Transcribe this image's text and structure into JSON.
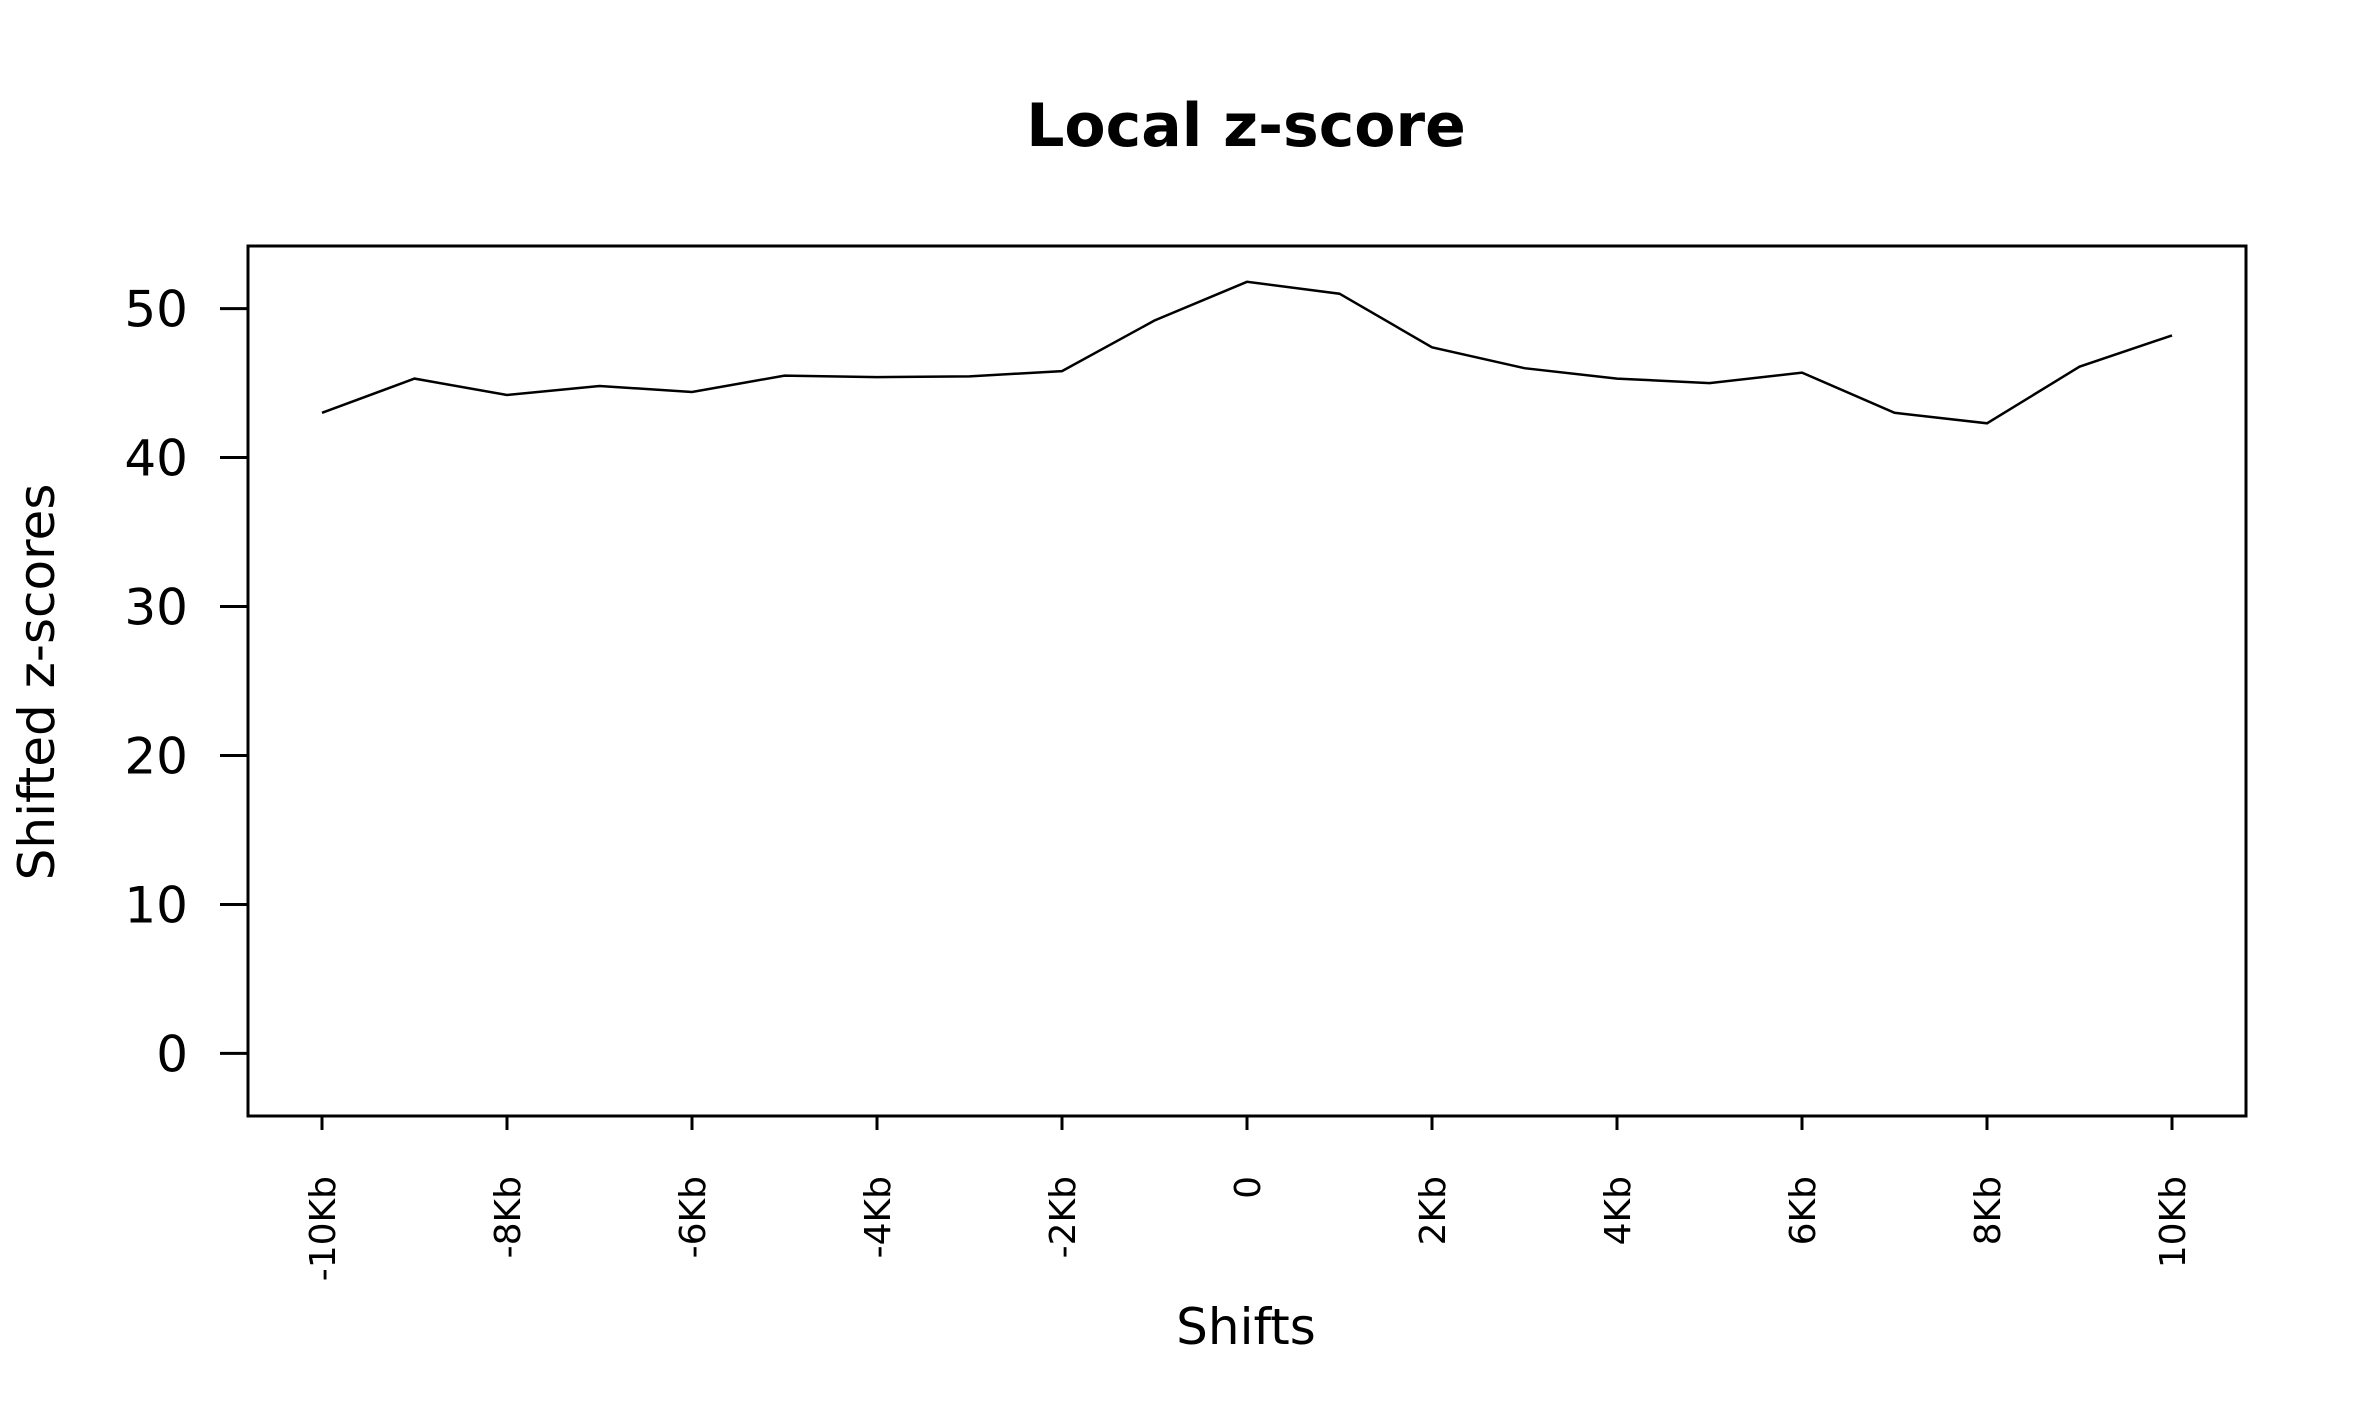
{
  "chart_data": {
    "type": "line",
    "title": "Local z-score",
    "xlabel": "Shifts",
    "ylabel": "Shifted z-scores",
    "xlim": [
      -10.8,
      10.8
    ],
    "ylim": [
      -4.2,
      54.2
    ],
    "yticks": [
      0,
      10,
      20,
      30,
      40,
      50
    ],
    "ytick_labels": [
      "0",
      "10",
      "20",
      "30",
      "40",
      "50"
    ],
    "xticks": [
      -10,
      -8,
      -6,
      -4,
      -2,
      0,
      2,
      4,
      6,
      8,
      10
    ],
    "xtick_labels": [
      "-10Kb",
      "-8Kb",
      "-6Kb",
      "-4Kb",
      "-2Kb",
      "0",
      "2Kb",
      "4Kb",
      "6Kb",
      "8Kb",
      "10Kb"
    ],
    "grid": false,
    "series": [
      {
        "x": [
          -10,
          -9,
          -8,
          -7,
          -6,
          -5,
          -4,
          -3,
          -2,
          -1,
          0,
          1,
          2,
          3,
          4,
          5,
          6,
          7,
          8,
          9,
          10
        ],
        "values": [
          43.0,
          45.3,
          44.2,
          44.8,
          44.4,
          45.5,
          45.4,
          45.45,
          45.8,
          49.2,
          51.8,
          51.0,
          47.4,
          46.0,
          45.3,
          45.0,
          45.7,
          43.0,
          42.3,
          46.1,
          48.2
        ]
      }
    ]
  }
}
